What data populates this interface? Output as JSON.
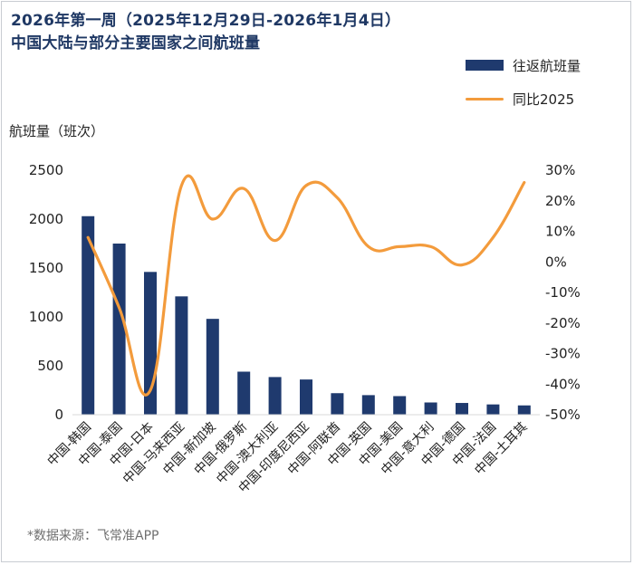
{
  "title_line1": "2026年第一周（2025年12月29日-2026年1月4日）",
  "title_line2": "中国大陆与部分主要国家之间航班量",
  "legend": {
    "bar_label": "往返航班量",
    "line_label": "同比2025"
  },
  "y_axis_title": "航班量（班次）",
  "source": "*数据来源：飞常准APP",
  "colors": {
    "bar": "#1f3a6e",
    "line": "#f39b3c",
    "title": "#1f3864"
  },
  "chart_data": {
    "type": "bar",
    "categories": [
      "中国-韩国",
      "中国-泰国",
      "中国-日本",
      "中国-马来西亚",
      "中国-新加坡",
      "中国-俄罗斯",
      "中国-澳大利亚",
      "中国-印度尼西亚",
      "中国-阿联酋",
      "中国-英国",
      "中国-美国",
      "中国-意大利",
      "中国-德国",
      "中国-法国",
      "中国-土耳其"
    ],
    "series": [
      {
        "name": "往返航班量",
        "type": "bar",
        "axis": "left",
        "values": [
          2030,
          1750,
          1460,
          1210,
          980,
          440,
          385,
          360,
          220,
          200,
          190,
          125,
          120,
          105,
          95
        ]
      },
      {
        "name": "同比2025",
        "type": "line",
        "axis": "right",
        "values": [
          8,
          -15,
          -42,
          25,
          14,
          24,
          7,
          25,
          21,
          5,
          5,
          5,
          -1,
          8,
          26
        ]
      }
    ],
    "y_left": {
      "min": 0,
      "max": 2500,
      "ticks": [
        0,
        500,
        1000,
        1500,
        2000,
        2500
      ]
    },
    "y_right": {
      "min": -50,
      "max": 30,
      "ticks": [
        "30%",
        "20%",
        "10%",
        "0%",
        "-10%",
        "-20%",
        "-30%",
        "-40%",
        "-50%"
      ]
    },
    "ylabel": "航班量（班次）",
    "legend_position": "top-right"
  }
}
